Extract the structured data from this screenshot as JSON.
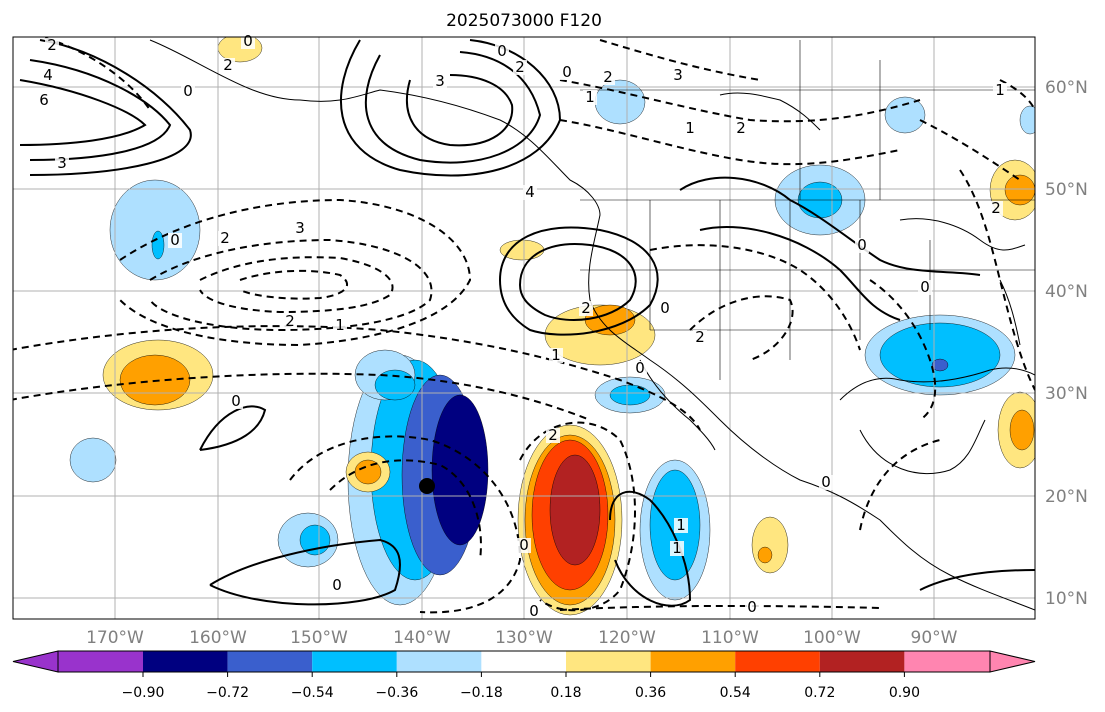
{
  "title": "2025073000 F120",
  "map": {
    "lon_labels": [
      "170°W",
      "160°W",
      "150°W",
      "140°W",
      "130°W",
      "120°W",
      "110°W",
      "100°W",
      "90°W"
    ],
    "lat_labels": [
      "60°N",
      "50°N",
      "40°N",
      "30°N",
      "20°N",
      "10°N"
    ],
    "contour_labels": [
      "2",
      "4",
      "6",
      "0",
      "3",
      "2",
      "0",
      "3",
      "0",
      "2",
      "4",
      "0",
      "1",
      "2",
      "3",
      "0",
      "2",
      "3",
      "2",
      "1",
      "0",
      "2",
      "1",
      "0",
      "1",
      "2",
      "2",
      "0",
      "1",
      "2",
      "0",
      "0",
      "0",
      "2",
      "0",
      "0",
      "1",
      "0",
      "1",
      "0"
    ],
    "point_marker": "black-circle"
  },
  "colorbar": {
    "colors": {
      "under": "#9933cc",
      "c1": "#000080",
      "c2": "#3a5fcd",
      "c3": "#00bfff",
      "c4": "#aee0ff",
      "c5": "#ffffff",
      "c6": "#ffe680",
      "c7": "#ffa000",
      "c8": "#ff4000",
      "c9": "#b22222",
      "over": "#ff85b0"
    },
    "tick_labels": [
      "−0.90",
      "−0.72",
      "−0.54",
      "−0.36",
      "−0.18",
      "0.18",
      "0.36",
      "0.54",
      "0.72",
      "0.90"
    ]
  }
}
